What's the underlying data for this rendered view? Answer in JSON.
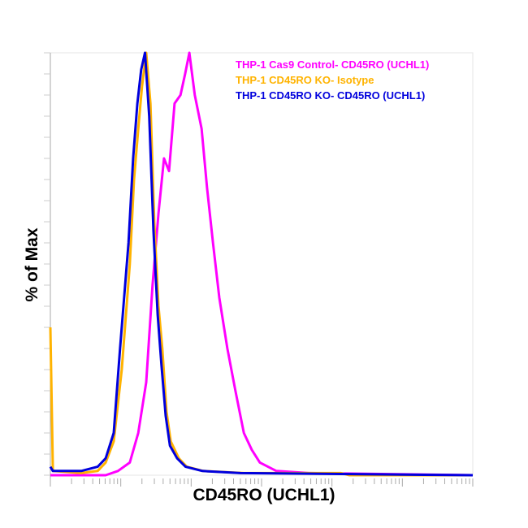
{
  "chart_data": {
    "type": "line",
    "title": "",
    "xlabel": "CD45RO (UCHL1)",
    "ylabel": "% of Max",
    "xscale": "log (channel 0-1000, ~6 decades)",
    "xlim": [
      0,
      1000
    ],
    "ylim": [
      0,
      100
    ],
    "legend_position": "top-right",
    "series": [
      {
        "name": "THP-1 Cas9 Control- CD45RO (UCHL1)",
        "color": "#ff00ff",
        "x": [
          0,
          131,
          160,
          188,
          208,
          227,
          242,
          256,
          269,
          281,
          294,
          308,
          319,
          329,
          342,
          358,
          371,
          385,
          400,
          419,
          438,
          458,
          477,
          496,
          535,
          612,
          1000
        ],
        "y": [
          0,
          0,
          1,
          3,
          10,
          22,
          45,
          62,
          75,
          72,
          88,
          90,
          95,
          100,
          90,
          82,
          68,
          55,
          42,
          30,
          20,
          10,
          6,
          3,
          1,
          0.5,
          0
        ]
      },
      {
        "name": "THP-1 CD45RO KO- Isotype",
        "color": "#ffb300",
        "x": [
          0,
          6,
          73,
          112,
          131,
          150,
          169,
          188,
          198,
          208,
          217,
          227,
          237,
          246,
          256,
          265,
          275,
          285,
          304,
          323,
          362,
          458,
          688,
          708,
          1000
        ],
        "y": [
          35,
          1,
          0.5,
          1,
          3,
          8,
          25,
          50,
          70,
          82,
          92,
          100,
          88,
          60,
          40,
          30,
          15,
          8,
          4,
          2,
          1,
          0.5,
          0.5,
          0,
          0
        ]
      },
      {
        "name": "THP-1 CD45RO KO- CD45RO (UCHL1)",
        "color": "#0000dd",
        "x": [
          0,
          6,
          73,
          112,
          131,
          150,
          165,
          185,
          196,
          206,
          215,
          224,
          234,
          244,
          254,
          263,
          273,
          283,
          300,
          320,
          360,
          450,
          1000
        ],
        "y": [
          2,
          1,
          1,
          2,
          4,
          10,
          30,
          55,
          75,
          88,
          96,
          100,
          85,
          58,
          38,
          26,
          14,
          7,
          4,
          2,
          1,
          0.5,
          0
        ]
      }
    ]
  }
}
